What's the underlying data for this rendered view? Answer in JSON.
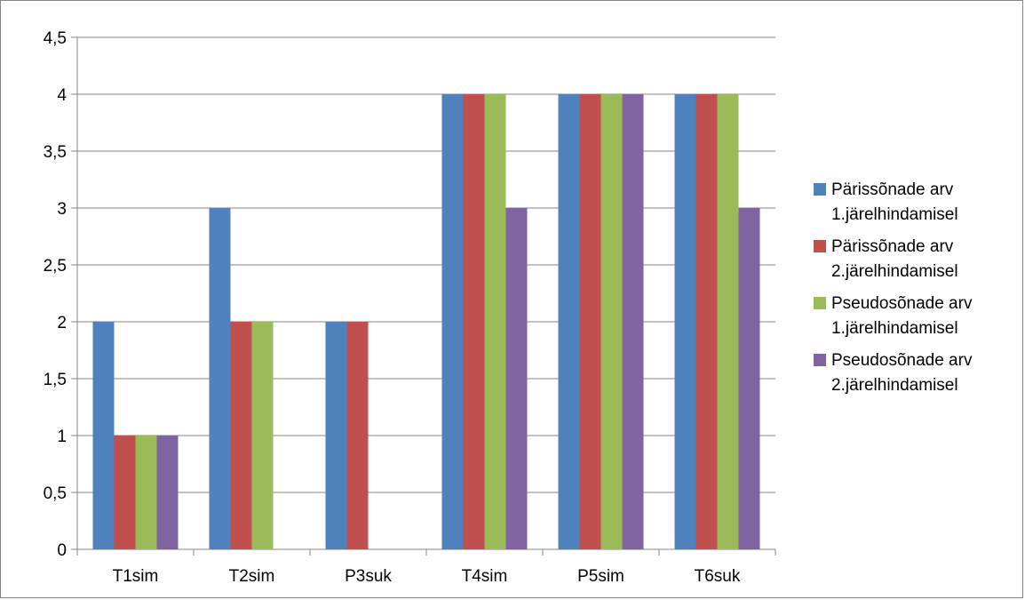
{
  "chart_data": {
    "type": "bar",
    "categories": [
      "T1sim",
      "T2sim",
      "P3suk",
      "T4sim",
      "P5sim",
      "T6suk"
    ],
    "series": [
      {
        "name": "Pärissõnade arv\n1.järelhindamisel",
        "color": "#4F81BD",
        "values": [
          2,
          3,
          2,
          4,
          4,
          4
        ]
      },
      {
        "name": "Pärissõnade arv\n2.järelhindamisel",
        "color": "#C0504D",
        "values": [
          1,
          2,
          2,
          4,
          4,
          4
        ]
      },
      {
        "name": "Pseudosõnade arv\n1.järelhindamisel",
        "color": "#9BBB59",
        "values": [
          1,
          2,
          0,
          4,
          4,
          4
        ]
      },
      {
        "name": "Pseudosõnade arv\n2.järelhindamisel",
        "color": "#8064A2",
        "values": [
          1,
          0,
          0,
          3,
          4,
          3
        ]
      }
    ],
    "y_ticks": [
      "0",
      "0,5",
      "1",
      "1,5",
      "2",
      "2,5",
      "3",
      "3,5",
      "4",
      "4,5"
    ],
    "ylim": [
      0,
      4.5
    ],
    "grid": true,
    "legend_position": "right",
    "title": "",
    "xlabel": "",
    "ylabel": ""
  }
}
